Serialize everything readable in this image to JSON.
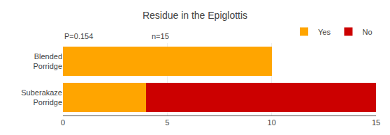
{
  "chart_data": {
    "type": "bar",
    "orientation": "horizontal",
    "stacked": true,
    "title": "Residue in the Epiglottis",
    "categories": [
      "Blended\nPorridge",
      "Suberakaze\nPorridge"
    ],
    "series": [
      {
        "name": "Yes",
        "color": "#FFA500",
        "values": [
          10,
          4
        ]
      },
      {
        "name": "No",
        "color": "#CC0000",
        "values": [
          0,
          11
        ]
      }
    ],
    "xlim": [
      0,
      15
    ],
    "xticks": [
      0,
      5,
      10,
      15
    ],
    "grid": true,
    "legend": "upper right",
    "annotations": [
      "P=0.154",
      "n=15"
    ]
  }
}
